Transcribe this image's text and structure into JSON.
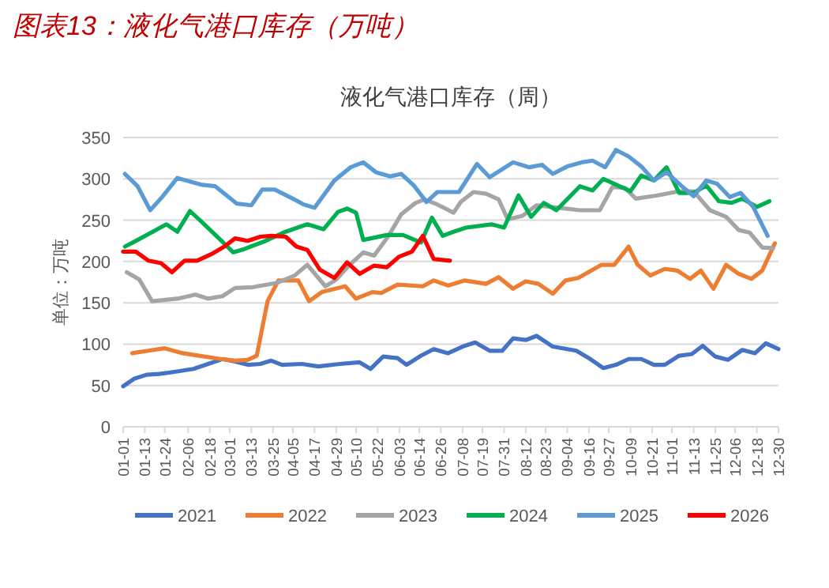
{
  "chart_data": {
    "type": "line",
    "title": "图表13：液化气港口库存（万吨）",
    "subtitle": "液化气港口库存（周）",
    "ylabel": "单位：万吨",
    "xlim": [
      "--01-01",
      "--12-30"
    ],
    "xticks": [
      {
        "value": "--01-01",
        "label": "01-01"
      },
      {
        "value": "--01-13",
        "label": "01-13"
      },
      {
        "value": "--01-24",
        "label": "01-24"
      },
      {
        "value": "--02-06",
        "label": "02-06"
      },
      {
        "value": "--02-18",
        "label": "02-18"
      },
      {
        "value": "--03-01",
        "label": "03-01"
      },
      {
        "value": "--03-13",
        "label": "03-13"
      },
      {
        "value": "--03-25",
        "label": "03-25"
      },
      {
        "value": "--04-05",
        "label": "04-05"
      },
      {
        "value": "--04-17",
        "label": "04-17"
      },
      {
        "value": "--04-29",
        "label": "04-29"
      },
      {
        "value": "--05-10",
        "label": "05-10"
      },
      {
        "value": "--05-22",
        "label": "05-22"
      },
      {
        "value": "--06-03",
        "label": "06-03"
      },
      {
        "value": "--06-14",
        "label": "06-14"
      },
      {
        "value": "--06-26",
        "label": "06-26"
      },
      {
        "value": "--07-08",
        "label": "07-08"
      },
      {
        "value": "--07-19",
        "label": "07-19"
      },
      {
        "value": "--07-31",
        "label": "07-31"
      },
      {
        "value": "--08-12",
        "label": "08-12"
      },
      {
        "value": "--08-23",
        "label": "08-23"
      },
      {
        "value": "--09-04",
        "label": "09-04"
      },
      {
        "value": "--09-16",
        "label": "09-16"
      },
      {
        "value": "--09-27",
        "label": "09-27"
      },
      {
        "value": "--10-09",
        "label": "10-09"
      },
      {
        "value": "--10-21",
        "label": "10-21"
      },
      {
        "value": "--11-01",
        "label": "11-01"
      },
      {
        "value": "--11-13",
        "label": "11-13"
      },
      {
        "value": "--11-25",
        "label": "11-25"
      },
      {
        "value": "--12-06",
        "label": "12-06"
      },
      {
        "value": "--12-18",
        "label": "12-18"
      },
      {
        "value": "--12-30",
        "label": "12-30"
      }
    ],
    "ylim": [
      0,
      350
    ],
    "yticks": [
      0,
      50,
      100,
      150,
      200,
      250,
      300,
      350
    ],
    "grid": "y",
    "legend": "bottom",
    "marker": "none",
    "line_style": "solid",
    "series": [
      {
        "name": "2021",
        "color": "#4472c4",
        "x": [
          "--01-01",
          "--01-07",
          "--01-14",
          "--01-21",
          "--01-28",
          "--02-09",
          "--02-25",
          "--03-04",
          "--03-11",
          "--03-18",
          "--03-24",
          "--03-30",
          "--04-10",
          "--04-19",
          "--05-01",
          "--05-12",
          "--05-18",
          "--05-25",
          "--06-02",
          "--06-07",
          "--06-15",
          "--06-22",
          "--06-30",
          "--07-08",
          "--07-15",
          "--07-23",
          "--07-30",
          "--08-05",
          "--08-12",
          "--08-18",
          "--08-27",
          "--09-09",
          "--09-16",
          "--09-24",
          "--10-01",
          "--10-08",
          "--10-15",
          "--10-22",
          "--10-28",
          "--11-05",
          "--11-12",
          "--11-18",
          "--11-25",
          "--12-02",
          "--12-10",
          "--12-17",
          "--12-23",
          "--12-30"
        ],
        "values": [
          49,
          58,
          63,
          64,
          66,
          70,
          82,
          79,
          75,
          76,
          80,
          75,
          76,
          73,
          76,
          78,
          70,
          85,
          83,
          75,
          86,
          94,
          89,
          97,
          102,
          92,
          92,
          107,
          105,
          110,
          97,
          92,
          83,
          71,
          75,
          82,
          82,
          75,
          75,
          86,
          88,
          98,
          85,
          81,
          93,
          89,
          101,
          94
        ]
      },
      {
        "name": "2022",
        "color": "#ed7d31",
        "x": [
          "--01-06",
          "--01-15",
          "--01-24",
          "--02-03",
          "--02-12",
          "--02-24",
          "--03-04",
          "--03-11",
          "--03-16",
          "--03-22",
          "--03-28",
          "--04-08",
          "--04-14",
          "--04-21",
          "--05-04",
          "--05-10",
          "--05-19",
          "--05-24",
          "--06-02",
          "--06-16",
          "--06-22",
          "--06-30",
          "--07-09",
          "--07-21",
          "--07-28",
          "--08-05",
          "--08-12",
          "--08-19",
          "--08-27",
          "--09-03",
          "--09-10",
          "--09-23",
          "--09-30",
          "--10-08",
          "--10-13",
          "--10-20",
          "--10-28",
          "--11-04",
          "--11-11",
          "--11-17",
          "--11-24",
          "--12-01",
          "--12-08",
          "--12-15",
          "--12-21",
          "--12-28"
        ],
        "values": [
          89,
          92,
          95,
          89,
          86,
          82,
          80,
          81,
          86,
          152,
          177,
          177,
          152,
          163,
          170,
          155,
          163,
          162,
          172,
          170,
          177,
          171,
          177,
          173,
          181,
          167,
          176,
          173,
          161,
          177,
          180,
          196,
          196,
          218,
          196,
          183,
          191,
          189,
          179,
          189,
          167,
          196,
          185,
          179,
          189,
          222
        ]
      },
      {
        "name": "2023",
        "color": "#a5a5a5",
        "x": [
          "--01-03",
          "--01-10",
          "--01-17",
          "--01-31",
          "--02-10",
          "--02-17",
          "--02-25",
          "--03-04",
          "--03-14",
          "--03-27",
          "--04-06",
          "--04-13",
          "--04-23",
          "--04-29",
          "--05-06",
          "--05-14",
          "--05-20",
          "--05-28",
          "--06-04",
          "--06-12",
          "--06-17",
          "--06-24",
          "--07-03",
          "--07-07",
          "--07-14",
          "--07-21",
          "--07-28",
          "--08-02",
          "--08-10",
          "--08-18",
          "--08-30",
          "--09-11",
          "--09-22",
          "--09-29",
          "--10-06",
          "--10-12",
          "--10-24",
          "--11-05",
          "--11-13",
          "--11-22",
          "--12-01",
          "--12-08",
          "--12-14",
          "--12-21",
          "--12-27"
        ],
        "values": [
          187,
          178,
          152,
          155,
          160,
          155,
          158,
          168,
          169,
          174,
          183,
          196,
          170,
          178,
          195,
          211,
          207,
          231,
          257,
          271,
          275,
          269,
          259,
          272,
          284,
          282,
          275,
          251,
          255,
          268,
          265,
          262,
          262,
          290,
          289,
          276,
          280,
          285,
          285,
          262,
          254,
          238,
          235,
          217,
          216
        ]
      },
      {
        "name": "2024",
        "color": "#00b050",
        "x": [
          "--01-02",
          "--01-09",
          "--01-25",
          "--01-31",
          "--02-07",
          "--02-13",
          "--02-25",
          "--03-03",
          "--03-09",
          "--03-21",
          "--04-01",
          "--04-13",
          "--04-22",
          "--04-30",
          "--05-05",
          "--05-10",
          "--05-14",
          "--05-27",
          "--06-05",
          "--06-15",
          "--06-21",
          "--06-27",
          "--07-03",
          "--07-10",
          "--07-24",
          "--07-31",
          "--08-08",
          "--08-15",
          "--08-22",
          "--08-29",
          "--09-11",
          "--09-18",
          "--09-24",
          "--10-09",
          "--10-15",
          "--10-22",
          "--10-29",
          "--11-05",
          "--11-13",
          "--11-20",
          "--11-27",
          "--12-04",
          "--12-10",
          "--12-18",
          "--12-25"
        ],
        "values": [
          218,
          226,
          245,
          236,
          261,
          249,
          224,
          211,
          215,
          225,
          236,
          245,
          239,
          260,
          264,
          259,
          226,
          232,
          232,
          223,
          253,
          231,
          236,
          241,
          245,
          241,
          280,
          254,
          271,
          262,
          291,
          286,
          300,
          285,
          304,
          298,
          314,
          283,
          283,
          292,
          273,
          271,
          276,
          266,
          273
        ]
      },
      {
        "name": "2025",
        "color": "#5b9bd5",
        "x": [
          "--01-02",
          "--01-09",
          "--01-16",
          "--01-23",
          "--01-31",
          "--02-13",
          "--02-21",
          "--03-05",
          "--03-13",
          "--03-19",
          "--03-26",
          "--04-05",
          "--04-11",
          "--04-17",
          "--04-28",
          "--05-07",
          "--05-14",
          "--05-21",
          "--05-29",
          "--06-04",
          "--06-11",
          "--06-18",
          "--06-24",
          "--07-06",
          "--07-16",
          "--07-23",
          "--08-05",
          "--08-14",
          "--08-21",
          "--08-27",
          "--09-04",
          "--09-12",
          "--09-18",
          "--09-25",
          "--10-01",
          "--10-08",
          "--10-15",
          "--10-22",
          "--10-29",
          "--11-06",
          "--11-13",
          "--11-20",
          "--11-26",
          "--12-03",
          "--12-09",
          "--12-16",
          "--12-24"
        ],
        "values": [
          306,
          291,
          262,
          279,
          301,
          293,
          291,
          270,
          268,
          287,
          287,
          276,
          269,
          265,
          298,
          314,
          320,
          308,
          303,
          306,
          292,
          272,
          284,
          284,
          318,
          302,
          320,
          314,
          317,
          306,
          315,
          320,
          322,
          314,
          335,
          327,
          315,
          298,
          308,
          292,
          279,
          298,
          294,
          278,
          283,
          266,
          231
        ]
      },
      {
        "name": "2026",
        "color": "#ff0000",
        "x": [
          "--01-01",
          "--01-08",
          "--01-15",
          "--01-22",
          "--01-28",
          "--02-04",
          "--02-11",
          "--02-19",
          "--02-26",
          "--03-04",
          "--03-11",
          "--03-18",
          "--03-24",
          "--04-01",
          "--04-07",
          "--04-13",
          "--04-20",
          "--04-28",
          "--05-05",
          "--05-12",
          "--05-20",
          "--05-27",
          "--06-03",
          "--06-10",
          "--06-16",
          "--06-22",
          "--07-01"
        ],
        "values": [
          212,
          212,
          201,
          198,
          187,
          201,
          201,
          209,
          218,
          228,
          225,
          230,
          231,
          230,
          218,
          214,
          190,
          180,
          199,
          185,
          195,
          193,
          206,
          212,
          231,
          203,
          201
        ]
      }
    ]
  }
}
